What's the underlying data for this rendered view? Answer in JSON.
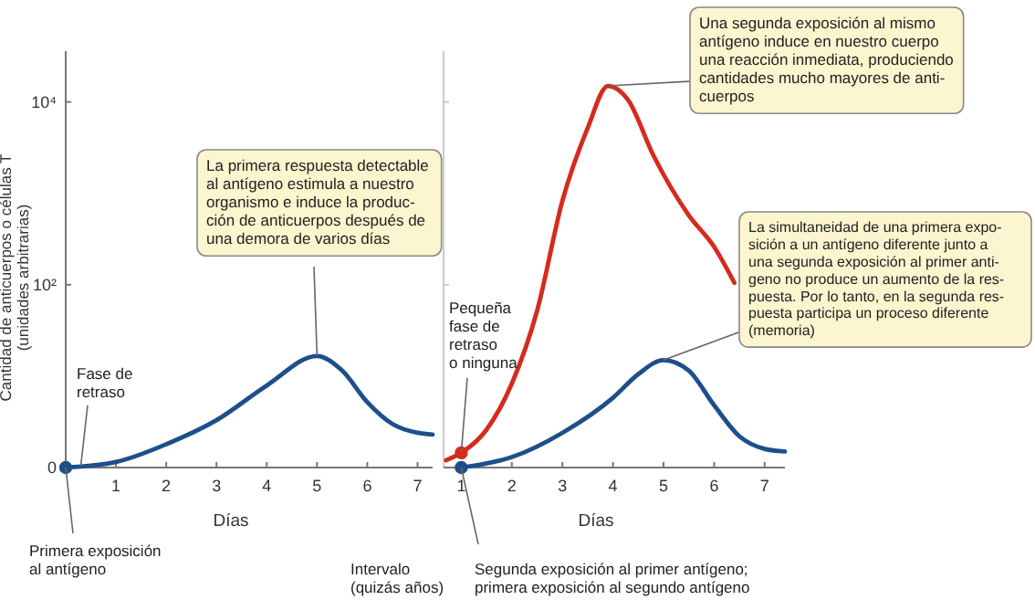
{
  "chart_data": [
    {
      "type": "line",
      "xlabel": "Días",
      "ylabel": "Cantidad de anticuerpos o células T\n(unidades arbitrarias)",
      "log": "y",
      "xlim": [
        0,
        7.3
      ],
      "xticks": [
        1,
        2,
        3,
        4,
        5,
        6,
        7
      ],
      "ylim": [
        0,
        36000
      ],
      "yticks": [
        0,
        {
          "value": 100,
          "label": "10²"
        },
        {
          "value": 10000,
          "label": "10⁴"
        }
      ],
      "series": [
        {
          "color": "#1d4f8a",
          "x": [
            0,
            1,
            2,
            3,
            4,
            5,
            5.5,
            6,
            6.5,
            7,
            7.3
          ],
          "values": [
            1,
            1.15,
            1.8,
            3.3,
            7.9,
            16.6,
            11.5,
            5.2,
            3.0,
            2.4,
            2.3
          ]
        },
        {
          "type": "scatter",
          "color": "#1d4f8a",
          "x": [
            0
          ],
          "values": [
            1
          ]
        }
      ],
      "annotations": [
        {
          "text": "La primera respuesta detectable\nal antígeno estimula a nuestro\norganismo e induce la produc-\nción de anticuerpos después de\nuna demora de varios días",
          "x": 5,
          "y": 16.6
        },
        {
          "text": "Fase de\nretraso",
          "x": 0.3,
          "y": 1.04
        },
        {
          "text": "Primera exposición\nal antígeno",
          "x": 0,
          "y": 1
        },
        "Intervalo\n(quizás años)"
      ]
    },
    {
      "type": "line",
      "xlabel": "Días",
      "log": "y",
      "tick_labels": "x",
      "xlim": [
        0.65,
        7.4
      ],
      "xticks": [
        1,
        2,
        3,
        4,
        5,
        6,
        7
      ],
      "ylim": [
        0,
        36000
      ],
      "yticks": [
        100,
        10000
      ],
      "series": [
        {
          "color": "#d62a1e",
          "x": [
            0.7,
            1,
            1.5,
            2,
            2.5,
            3,
            3.5,
            3.9,
            4.3,
            4.8,
            5.5,
            6,
            6.4
          ],
          "values": [
            1.2,
            1.45,
            2.6,
            8.3,
            52,
            830,
            5200,
            15000,
            10500,
            2600,
            575,
            260,
            105
          ]
        },
        {
          "color": "#1d4f8a",
          "x": [
            1,
            2,
            3,
            4,
            4.5,
            5,
            5.5,
            6,
            6.5,
            7,
            7.4
          ],
          "values": [
            1,
            1.3,
            2.4,
            5.8,
            10.5,
            15,
            11.5,
            4.8,
            2.2,
            1.6,
            1.5
          ]
        },
        {
          "type": "scatter",
          "color": "#d62a1e",
          "x": [
            1
          ],
          "values": [
            1.45
          ]
        },
        {
          "type": "scatter",
          "color": "#1d4f8a",
          "x": [
            1
          ],
          "values": [
            1
          ]
        }
      ],
      "annotations": [
        {
          "text": "Pequeña\nfase de\nretraso\no ninguna",
          "x": 1,
          "y": 1.45
        },
        {
          "text": "Segunda exposición al primer antígeno;\nprimera exposición al segundo antígeno",
          "x": 1,
          "y": 1
        },
        {
          "text": "Una segunda exposición al mismo\nantígeno induce en nuestro cuerpo\nuna reacción inmediata, produciendo\ncantidades mucho mayores de anti-\ncuerpos",
          "x": 3.9,
          "y": 15000
        },
        {
          "text": "La simultaneidad de una primera expo-\nsición a un antígeno diferente junto a\nuna segunda exposición al primer anti-\ngeno no produce un aumento de la res-\npuesta. Por lo tanto, en la segunda res-\npuesta participa un proceso diferente\n(memoria)",
          "x": 5,
          "y": 15
        }
      ]
    }
  ]
}
